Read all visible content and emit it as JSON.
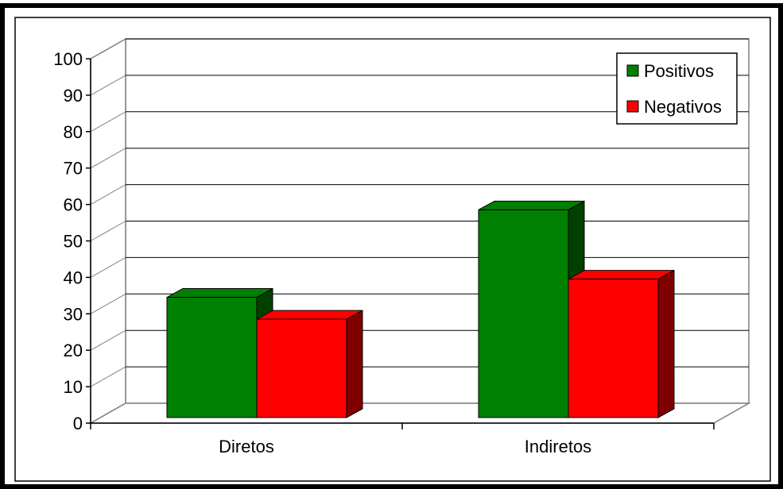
{
  "chart_data": {
    "type": "bar",
    "three_d": true,
    "categories": [
      "Diretos",
      "Indiretos"
    ],
    "series": [
      {
        "name": "Positivos",
        "values": [
          33,
          57
        ],
        "color": "#008000",
        "side_color": "#004000"
      },
      {
        "name": "Negativos",
        "values": [
          27,
          38
        ],
        "color": "#FF0000",
        "side_color": "#800000"
      }
    ],
    "ylim": [
      0,
      100
    ],
    "yticks": [
      "0",
      "10",
      "20",
      "30",
      "40",
      "50",
      "60",
      "70",
      "80",
      "90",
      "100"
    ],
    "grid": true,
    "legend_position": "top-right",
    "title": "",
    "xlabel": "",
    "ylabel": ""
  }
}
